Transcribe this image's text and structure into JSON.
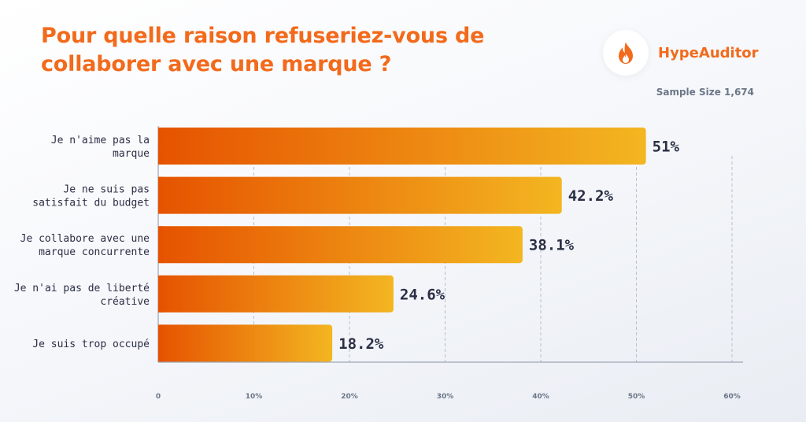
{
  "header": {
    "title": "Pour quelle raison refuseriez-vous de collaborer avec une marque ?",
    "brand_name": "HypeAuditor",
    "sample_size": "Sample Size 1,674",
    "logo_icon": "flame-icon"
  },
  "colors": {
    "title": "#f26a1b",
    "bar_start": "#e65300",
    "bar_end": "#f3b621",
    "text": "#2b2f45",
    "axis": "#6b7686"
  },
  "chart_data": {
    "type": "bar",
    "orientation": "horizontal",
    "title": "Pour quelle raison refuseriez-vous de collaborer avec une marque ?",
    "categories": [
      [
        "Je n'aime pas la",
        "marque"
      ],
      [
        "Je ne suis pas",
        "satisfait du budget"
      ],
      [
        "Je collabore avec une",
        "marque concurrente"
      ],
      [
        "Je n'ai pas de liberté",
        "créative"
      ],
      [
        "Je suis trop occupé"
      ]
    ],
    "values": [
      51,
      42.2,
      38.1,
      24.6,
      18.2
    ],
    "value_labels": [
      "51%",
      "42.2%",
      "38.1%",
      "24.6%",
      "18.2%"
    ],
    "xlim": [
      0,
      60
    ],
    "ticks": [
      0,
      10,
      20,
      30,
      40,
      50,
      60
    ],
    "tick_labels": [
      "0",
      "10%",
      "20%",
      "30%",
      "40%",
      "50%",
      "60%"
    ],
    "grid": "vertical dashed",
    "legend": "none"
  }
}
